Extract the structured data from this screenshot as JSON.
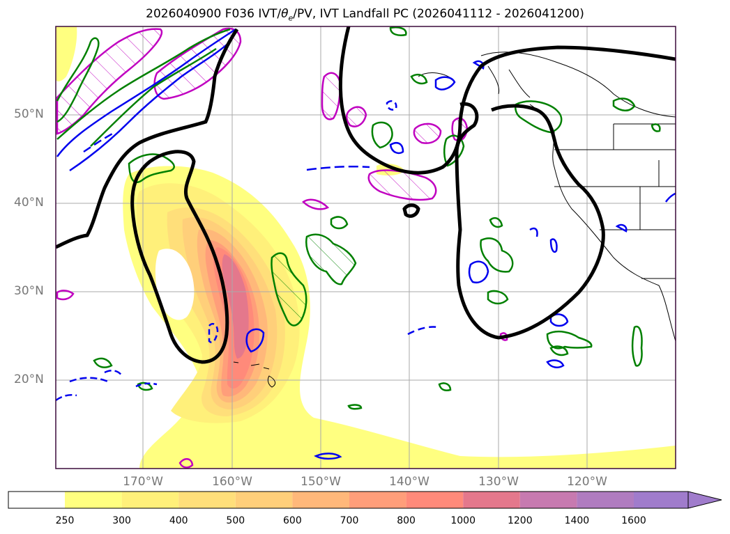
{
  "title": {
    "prefix": "2026040900 F036 IVT/",
    "theta": "θ",
    "theta_sub": "e",
    "suffix": "/PV, IVT Landfall PC (2026041112 - 2026041200)"
  },
  "map": {
    "lat_labels": [
      "50°N",
      "40°N",
      "30°N",
      "20°N"
    ],
    "lon_labels": [
      "170°W",
      "160°W",
      "150°W",
      "140°W",
      "130°W",
      "120°W"
    ],
    "gridline_color": "#aaaaaa",
    "frame_color": "#3a0a3a"
  },
  "colorbar": {
    "levels": [
      "250",
      "300",
      "400",
      "500",
      "600",
      "700",
      "800",
      "1000",
      "1200",
      "1400",
      "1600"
    ],
    "colors": [
      "#ffffff",
      "#ffff80",
      "#fff07a",
      "#ffdf7a",
      "#ffcf7a",
      "#ffb87a",
      "#ff9e7a",
      "#ff8a7a",
      "#e4788c",
      "#c77ab0",
      "#b07cc0",
      "#a07ccc"
    ],
    "extend": "max"
  },
  "legend_colors": {
    "pv_contour": "#000000",
    "theta_e_green": "#008000",
    "theta_e_blue": "#0000ee",
    "pc_magenta": "#c000c0"
  }
}
